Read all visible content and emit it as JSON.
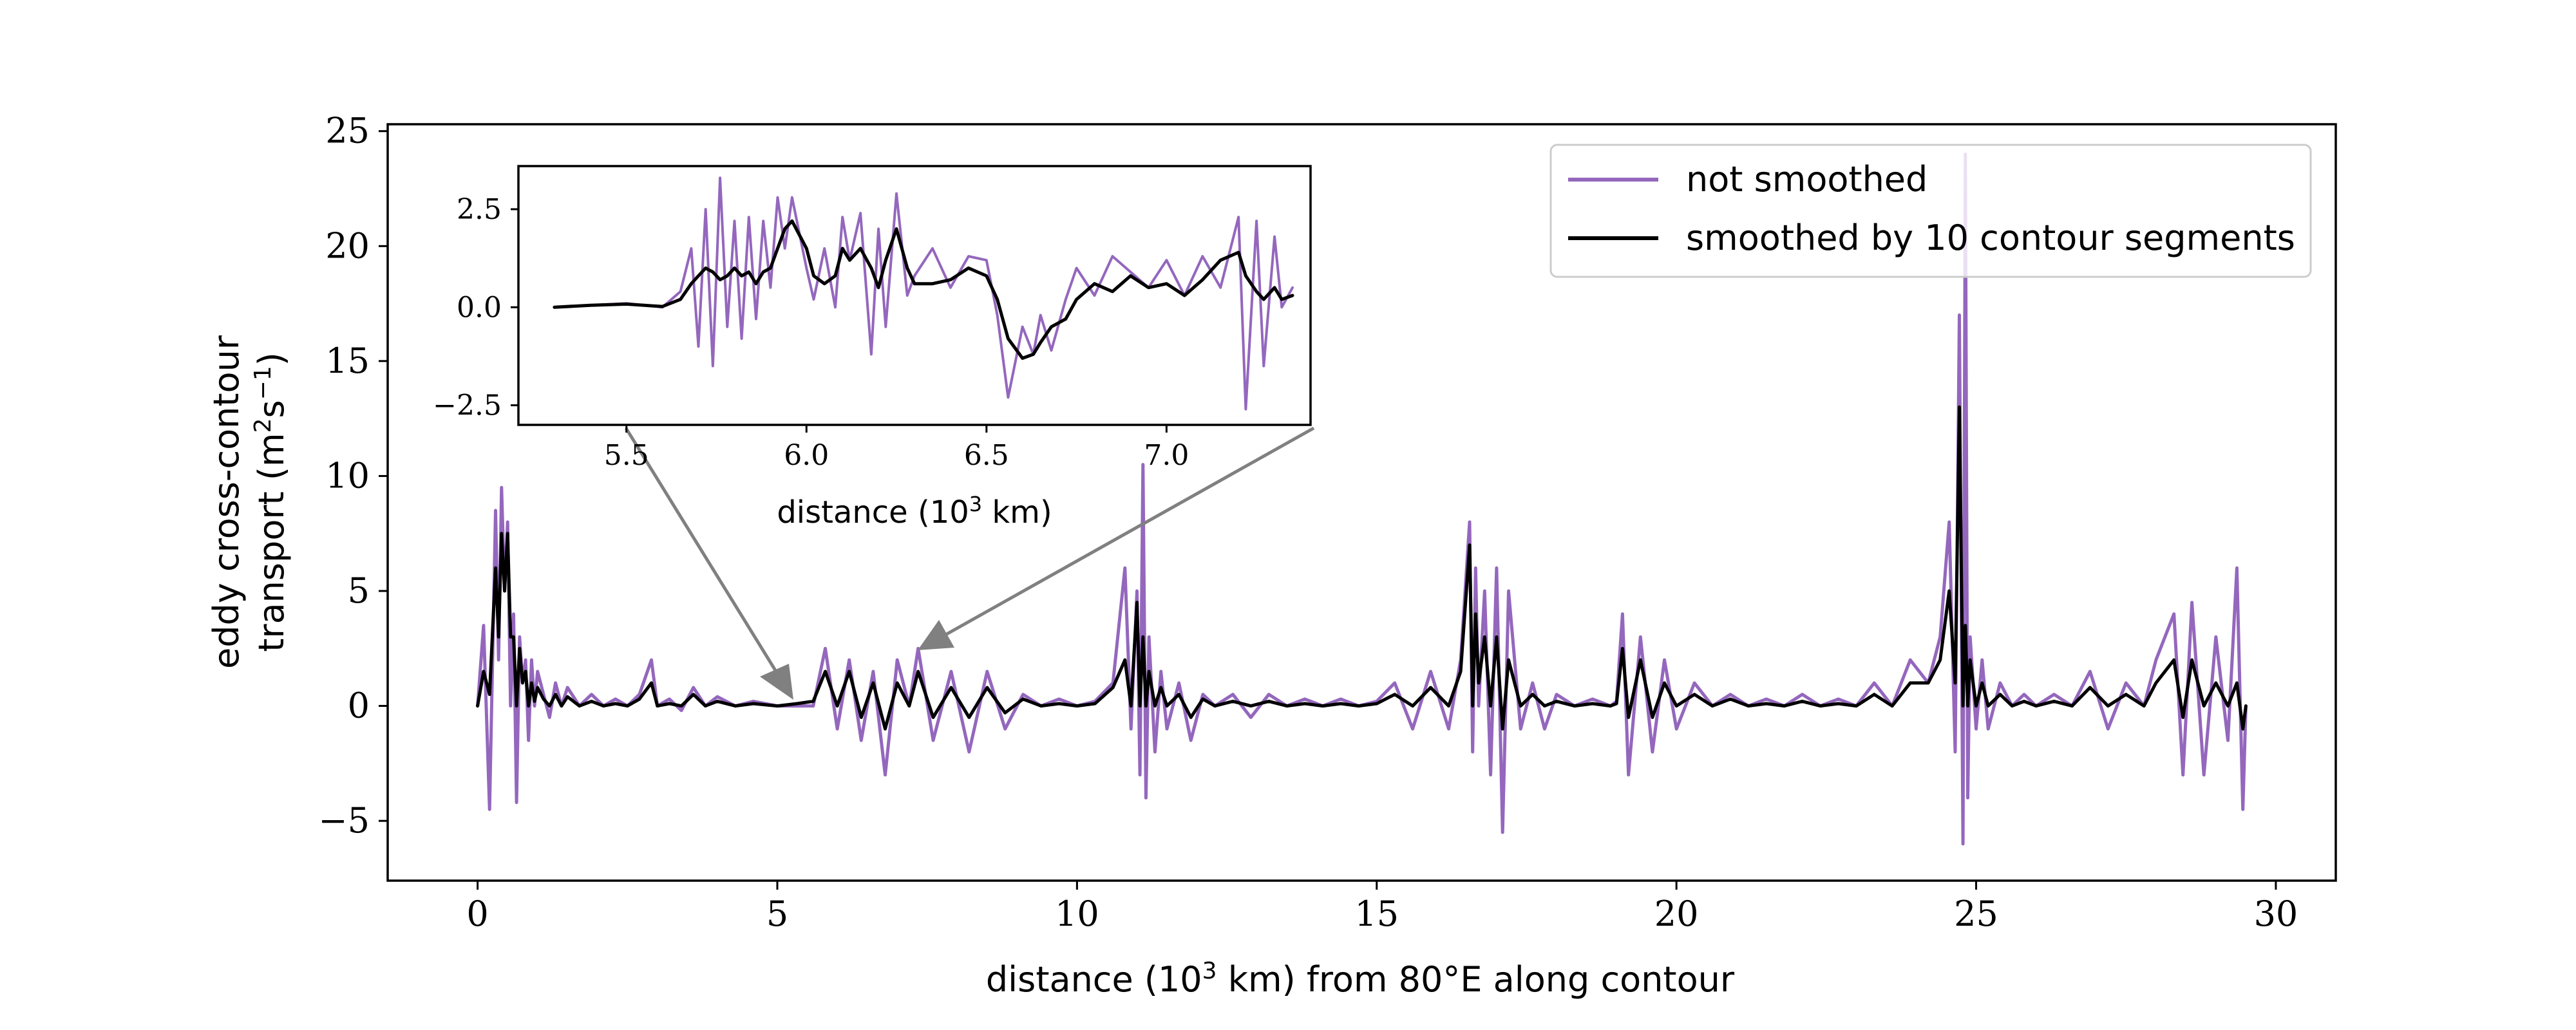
{
  "colors": {
    "not_smoothed": "#9467bd",
    "smoothed": "#000000",
    "callout_arrow": "#808080"
  },
  "chart_data": [
    {
      "type": "line",
      "panel": "main",
      "xlabel": {
        "pre": "distance (10",
        "sup": "3",
        "post": " km) from 80°E along contour"
      },
      "ylabel": {
        "line1": "eddy cross-contour",
        "line2_pre": "transport (m",
        "line2_sup1": "2",
        "line2_mid": "s",
        "line2_sup2": "−1",
        "line2_post": ")"
      },
      "xlim": [
        -1.5,
        31
      ],
      "ylim": [
        -7.6,
        25.3
      ],
      "xticks": [
        0,
        5,
        10,
        15,
        20,
        25,
        30
      ],
      "yticks": [
        -5,
        0,
        5,
        10,
        15,
        20,
        25
      ],
      "xtick_labels": [
        "0",
        "5",
        "10",
        "15",
        "20",
        "25",
        "30"
      ],
      "ytick_labels": [
        "−5",
        "0",
        "5",
        "10",
        "15",
        "20",
        "25"
      ],
      "legend": {
        "placement": "upper right",
        "entries": [
          "not smoothed",
          "smoothed by 10 contour segments"
        ]
      },
      "grid": false,
      "series": [
        {
          "name": "not smoothed",
          "x": [
            0,
            0.1,
            0.2,
            0.3,
            0.35,
            0.4,
            0.45,
            0.5,
            0.55,
            0.6,
            0.65,
            0.7,
            0.75,
            0.8,
            0.85,
            0.9,
            0.95,
            1.0,
            1.1,
            1.2,
            1.3,
            1.4,
            1.5,
            1.7,
            1.9,
            2.1,
            2.3,
            2.5,
            2.7,
            2.9,
            3.0,
            3.2,
            3.4,
            3.6,
            3.8,
            4.0,
            4.3,
            4.6,
            5.0,
            5.33,
            5.6,
            5.8,
            6.0,
            6.2,
            6.4,
            6.6,
            6.8,
            7.0,
            7.2,
            7.35,
            7.6,
            7.9,
            8.2,
            8.5,
            8.8,
            9.1,
            9.4,
            9.7,
            10.0,
            10.3,
            10.6,
            10.8,
            10.9,
            11.0,
            11.05,
            11.1,
            11.15,
            11.2,
            11.3,
            11.4,
            11.5,
            11.7,
            11.9,
            12.1,
            12.3,
            12.6,
            12.9,
            13.2,
            13.5,
            13.8,
            14.1,
            14.4,
            14.7,
            15.0,
            15.3,
            15.6,
            15.9,
            16.2,
            16.4,
            16.55,
            16.6,
            16.65,
            16.7,
            16.8,
            16.9,
            17.0,
            17.1,
            17.2,
            17.4,
            17.6,
            17.8,
            18.0,
            18.3,
            18.6,
            18.9,
            19.0,
            19.1,
            19.2,
            19.4,
            19.6,
            19.8,
            20.0,
            20.3,
            20.6,
            20.9,
            21.2,
            21.5,
            21.8,
            22.1,
            22.4,
            22.7,
            23.0,
            23.3,
            23.6,
            23.9,
            24.2,
            24.4,
            24.55,
            24.65,
            24.72,
            24.78,
            24.82,
            24.86,
            24.9,
            25.0,
            25.1,
            25.2,
            25.4,
            25.6,
            25.8,
            26.0,
            26.3,
            26.6,
            26.9,
            27.2,
            27.5,
            27.8,
            28.0,
            28.3,
            28.45,
            28.6,
            28.8,
            29.0,
            29.2,
            29.35,
            29.45,
            29.5
          ],
          "y": [
            0,
            3.5,
            -4.5,
            8.5,
            2,
            9.5,
            5,
            8,
            0,
            4,
            -4.2,
            3,
            1,
            2,
            -1.5,
            2,
            0,
            1.5,
            0.5,
            -0.5,
            1,
            0,
            0.8,
            0,
            0.5,
            0,
            0.3,
            0,
            0.5,
            2,
            0,
            0.3,
            -0.2,
            0.8,
            0,
            0.4,
            0,
            0.2,
            0,
            0,
            0,
            2.5,
            -1,
            2,
            -1.5,
            1.5,
            -3,
            2,
            0,
            2.5,
            -1.5,
            1.5,
            -2,
            1.5,
            -1,
            0.5,
            0,
            0.3,
            0,
            0.2,
            1,
            6,
            -1,
            5,
            -3,
            10.5,
            -4,
            3,
            -2,
            1.5,
            -1,
            1,
            -1.5,
            0.5,
            0,
            0.5,
            -0.5,
            0.5,
            0,
            0.3,
            0,
            0.3,
            0,
            0.2,
            1,
            -1,
            1.5,
            -1,
            2,
            8,
            -2,
            6,
            0,
            5,
            -3,
            6,
            -5.5,
            5,
            -1,
            1,
            -1,
            0.5,
            0,
            0.3,
            0,
            0.2,
            4,
            -3,
            3,
            -2,
            2,
            -1,
            1,
            0,
            0.5,
            0,
            0.3,
            0,
            0.5,
            0,
            0.3,
            0,
            1,
            0,
            2,
            1,
            3,
            8,
            -2,
            17,
            -6,
            24,
            -4,
            3,
            -1,
            2,
            -1,
            1,
            0,
            0.5,
            0,
            0.5,
            0,
            1.5,
            -1,
            1,
            0,
            2,
            4,
            -3,
            4.5,
            -3,
            3,
            -1.5,
            6,
            -4.5,
            0
          ]
        },
        {
          "name": "smoothed by 10 contour segments",
          "x": [
            0,
            0.1,
            0.2,
            0.3,
            0.35,
            0.4,
            0.45,
            0.5,
            0.55,
            0.6,
            0.65,
            0.7,
            0.75,
            0.8,
            0.85,
            0.9,
            0.95,
            1.0,
            1.1,
            1.2,
            1.3,
            1.4,
            1.5,
            1.7,
            1.9,
            2.1,
            2.3,
            2.5,
            2.7,
            2.9,
            3.0,
            3.2,
            3.4,
            3.6,
            3.8,
            4.0,
            4.3,
            4.6,
            5.0,
            5.33,
            5.6,
            5.8,
            6.0,
            6.2,
            6.4,
            6.6,
            6.8,
            7.0,
            7.2,
            7.35,
            7.6,
            7.9,
            8.2,
            8.5,
            8.8,
            9.1,
            9.4,
            9.7,
            10.0,
            10.3,
            10.6,
            10.8,
            10.9,
            11.0,
            11.05,
            11.1,
            11.15,
            11.2,
            11.3,
            11.4,
            11.5,
            11.7,
            11.9,
            12.1,
            12.3,
            12.6,
            12.9,
            13.2,
            13.5,
            13.8,
            14.1,
            14.4,
            14.7,
            15.0,
            15.3,
            15.6,
            15.9,
            16.2,
            16.4,
            16.55,
            16.6,
            16.65,
            16.7,
            16.8,
            16.9,
            17.0,
            17.1,
            17.2,
            17.4,
            17.6,
            17.8,
            18.0,
            18.3,
            18.6,
            18.9,
            19.0,
            19.1,
            19.2,
            19.4,
            19.6,
            19.8,
            20.0,
            20.3,
            20.6,
            20.9,
            21.2,
            21.5,
            21.8,
            22.1,
            22.4,
            22.7,
            23.0,
            23.3,
            23.6,
            23.9,
            24.2,
            24.4,
            24.55,
            24.65,
            24.72,
            24.78,
            24.82,
            24.86,
            24.9,
            25.0,
            25.1,
            25.2,
            25.4,
            25.6,
            25.8,
            26.0,
            26.3,
            26.6,
            26.9,
            27.2,
            27.5,
            27.8,
            28.0,
            28.3,
            28.45,
            28.6,
            28.8,
            29.0,
            29.2,
            29.35,
            29.45,
            29.5
          ],
          "y": [
            0,
            1.5,
            0.5,
            6,
            3,
            7.5,
            5,
            7.5,
            3,
            3,
            0,
            2.5,
            1,
            1.5,
            0,
            1,
            0.2,
            0.8,
            0.3,
            0,
            0.5,
            0,
            0.4,
            0,
            0.2,
            0,
            0.1,
            0,
            0.3,
            1,
            0,
            0.1,
            0,
            0.5,
            0,
            0.2,
            0,
            0.1,
            0,
            0.1,
            0.2,
            1.5,
            0,
            1.5,
            -0.5,
            1,
            -1,
            1,
            0,
            1.5,
            -0.5,
            0.8,
            -0.5,
            0.8,
            -0.3,
            0.3,
            0,
            0.1,
            0,
            0.1,
            0.8,
            2,
            0,
            4.5,
            0,
            3,
            0,
            1.5,
            0,
            0.8,
            0,
            0.5,
            -0.5,
            0.3,
            0,
            0.2,
            0,
            0.2,
            0,
            0.1,
            0,
            0.1,
            0,
            0.1,
            0.5,
            0,
            0.8,
            0,
            1.5,
            7,
            0,
            4,
            1,
            3,
            0,
            3,
            -1,
            2,
            0,
            0.5,
            0,
            0.2,
            0,
            0.1,
            0,
            0.1,
            2.5,
            -0.5,
            2,
            -0.5,
            1,
            0,
            0.5,
            0,
            0.3,
            0,
            0.1,
            0,
            0.2,
            0,
            0.1,
            0,
            0.5,
            0,
            1,
            1,
            2,
            5,
            1,
            13,
            0,
            3.5,
            0,
            2,
            0,
            1,
            0,
            0.5,
            0,
            0.2,
            0,
            0.2,
            0,
            0.8,
            0,
            0.5,
            0,
            1,
            2,
            -0.5,
            2,
            0,
            1,
            0,
            1,
            -1,
            0
          ]
        }
      ]
    },
    {
      "type": "line",
      "panel": "inset",
      "xlabel": {
        "pre": "distance (10",
        "sup": "3",
        "post": " km)"
      },
      "xlim": [
        5.2,
        7.4
      ],
      "ylim": [
        -3.0,
        3.6
      ],
      "xticks": [
        5.5,
        6.0,
        6.5,
        7.0
      ],
      "yticks": [
        -2.5,
        0.0,
        2.5
      ],
      "xtick_labels": [
        "5.5",
        "6.0",
        "6.5",
        "7.0"
      ],
      "ytick_labels": [
        "−2.5",
        "0.0",
        "2.5"
      ],
      "grid": false,
      "zoom_region": [
        5.3,
        7.35
      ],
      "series": [
        {
          "name": "not smoothed",
          "x": [
            5.3,
            5.4,
            5.5,
            5.6,
            5.65,
            5.68,
            5.7,
            5.72,
            5.74,
            5.76,
            5.78,
            5.8,
            5.82,
            5.84,
            5.86,
            5.88,
            5.9,
            5.92,
            5.94,
            5.96,
            6.0,
            6.02,
            6.05,
            6.08,
            6.1,
            6.12,
            6.15,
            6.18,
            6.2,
            6.22,
            6.25,
            6.28,
            6.3,
            6.35,
            6.4,
            6.45,
            6.5,
            6.53,
            6.56,
            6.6,
            6.63,
            6.65,
            6.68,
            6.72,
            6.75,
            6.8,
            6.85,
            6.9,
            6.95,
            7.0,
            7.05,
            7.1,
            7.15,
            7.2,
            7.22,
            7.25,
            7.27,
            7.3,
            7.32,
            7.35
          ],
          "y": [
            0,
            0.05,
            0.1,
            0,
            0.4,
            1.5,
            -1,
            2.5,
            -1.5,
            3.3,
            -0.5,
            2.2,
            -0.8,
            2.3,
            -0.3,
            2.2,
            0.5,
            2.8,
            1.5,
            2.8,
            1,
            0.2,
            1.5,
            0,
            2.3,
            1.2,
            2.4,
            -1.2,
            2,
            -0.5,
            2.9,
            0.3,
            0.8,
            1.5,
            0.5,
            1.3,
            1.2,
            -0.2,
            -2.3,
            -0.5,
            -1.2,
            -0.2,
            -1.1,
            0.2,
            1,
            0.3,
            1.3,
            0.9,
            0.5,
            1.2,
            0.3,
            1.3,
            0.5,
            2.3,
            -2.6,
            2.2,
            -1.5,
            1.8,
            0,
            0.5
          ]
        },
        {
          "name": "smoothed by 10 contour segments",
          "x": [
            5.3,
            5.4,
            5.5,
            5.6,
            5.65,
            5.68,
            5.7,
            5.72,
            5.74,
            5.76,
            5.78,
            5.8,
            5.82,
            5.84,
            5.86,
            5.88,
            5.9,
            5.92,
            5.94,
            5.96,
            6.0,
            6.02,
            6.05,
            6.08,
            6.1,
            6.12,
            6.15,
            6.18,
            6.2,
            6.22,
            6.25,
            6.28,
            6.3,
            6.35,
            6.4,
            6.45,
            6.5,
            6.53,
            6.56,
            6.6,
            6.63,
            6.65,
            6.68,
            6.72,
            6.75,
            6.8,
            6.85,
            6.9,
            6.95,
            7.0,
            7.05,
            7.1,
            7.15,
            7.2,
            7.22,
            7.25,
            7.27,
            7.3,
            7.32,
            7.35
          ],
          "y": [
            0,
            0.05,
            0.08,
            0.02,
            0.2,
            0.6,
            0.8,
            1.0,
            0.9,
            0.7,
            0.8,
            1.0,
            0.8,
            0.9,
            0.6,
            0.9,
            1.0,
            1.5,
            2.0,
            2.2,
            1.5,
            0.8,
            0.6,
            0.8,
            1.5,
            1.2,
            1.5,
            1.0,
            0.5,
            1.2,
            2.0,
            1.0,
            0.6,
            0.6,
            0.7,
            1.0,
            0.8,
            0.2,
            -0.8,
            -1.3,
            -1.2,
            -0.9,
            -0.5,
            -0.3,
            0.2,
            0.6,
            0.4,
            0.8,
            0.5,
            0.6,
            0.3,
            0.7,
            1.2,
            1.4,
            0.8,
            0.4,
            0.2,
            0.5,
            0.2,
            0.3
          ]
        }
      ]
    }
  ]
}
